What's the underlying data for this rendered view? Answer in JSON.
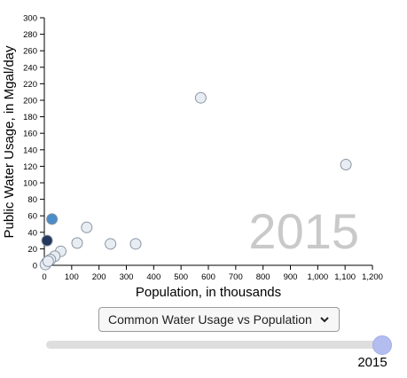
{
  "chart_data": {
    "type": "scatter",
    "title": "",
    "xlabel": "Population, in thousands",
    "ylabel": "Public Water Usage, in Mgal/day",
    "xlim": [
      0,
      1200
    ],
    "ylim": [
      0,
      300
    ],
    "x_ticks": [
      "0",
      "100",
      "200",
      "300",
      "400",
      "500",
      "600",
      "700",
      "800",
      "900",
      "1,000",
      "1,100",
      "1,200"
    ],
    "y_ticks": [
      "0",
      "20",
      "40",
      "60",
      "80",
      "100",
      "120",
      "140",
      "160",
      "180",
      "200",
      "220",
      "240",
      "260",
      "280",
      "300"
    ],
    "year_label": "2015",
    "grid": false,
    "points": [
      {
        "x": 572,
        "y": 203,
        "color": "#e8edf3"
      },
      {
        "x": 1103,
        "y": 122,
        "color": "#e8edf3"
      },
      {
        "x": 155,
        "y": 46,
        "color": "#e8edf3"
      },
      {
        "x": 120,
        "y": 27,
        "color": "#e8edf3"
      },
      {
        "x": 242,
        "y": 26,
        "color": "#e8edf3"
      },
      {
        "x": 334,
        "y": 26,
        "color": "#e8edf3"
      },
      {
        "x": 60,
        "y": 17,
        "color": "#e8edf3"
      },
      {
        "x": 38,
        "y": 11,
        "color": "#e8edf3"
      },
      {
        "x": 22,
        "y": 7,
        "color": "#e8edf3"
      },
      {
        "x": 8,
        "y": 3,
        "color": "#e8edf3"
      },
      {
        "x": 4,
        "y": 1,
        "color": "#e8edf3"
      },
      {
        "x": 14,
        "y": 5,
        "color": "#e8edf3"
      },
      {
        "x": 28,
        "y": 56,
        "color": "#4a8dc8"
      },
      {
        "x": 10,
        "y": 30,
        "color": "#24385e"
      }
    ]
  },
  "controls": {
    "dropdown_label": "Common Water Usage vs Population",
    "slider_value": "2015",
    "slider_level": 1.0
  }
}
